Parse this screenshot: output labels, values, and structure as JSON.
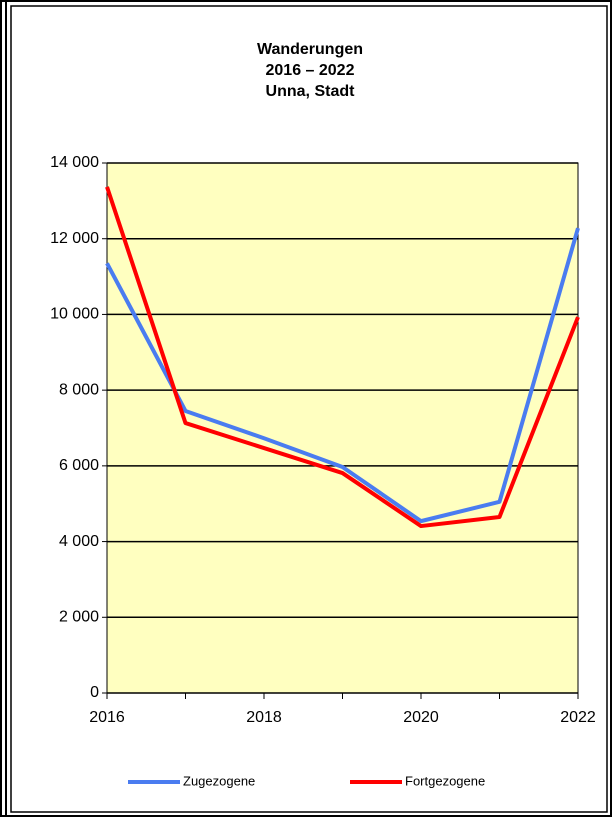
{
  "chart_data": {
    "type": "line",
    "title": [
      "Wanderungen",
      "2016 – 2022",
      "Unna, Stadt"
    ],
    "x": [
      2016,
      2017,
      2018,
      2019,
      2020,
      2021,
      2022
    ],
    "series": [
      {
        "name": "Zugezogene",
        "color": "#4a7cf0",
        "values": [
          11350,
          7450,
          6730,
          5970,
          4540,
          5050,
          12280
        ]
      },
      {
        "name": "Fortgezogene",
        "color": "#ff0000",
        "values": [
          13370,
          7130,
          6470,
          5810,
          4410,
          4650,
          9930
        ]
      }
    ],
    "xlim": [
      2016,
      2022
    ],
    "xticks": [
      2016,
      2018,
      2020,
      2022
    ],
    "ylim": [
      0,
      14000
    ],
    "yticks": [
      0,
      {
        "value": 2000,
        "label": "2 000"
      },
      {
        "value": 4000,
        "label": "4 000"
      },
      {
        "value": 6000,
        "label": "6 000"
      },
      {
        "value": 8000,
        "label": "8 000"
      },
      {
        "value": 10000,
        "label": "10 000"
      },
      {
        "value": 12000,
        "label": "12 000"
      },
      {
        "value": 14000,
        "label": "14 000"
      }
    ],
    "grid": true,
    "plot_background": "#ffffc0",
    "legend": "bottom"
  }
}
